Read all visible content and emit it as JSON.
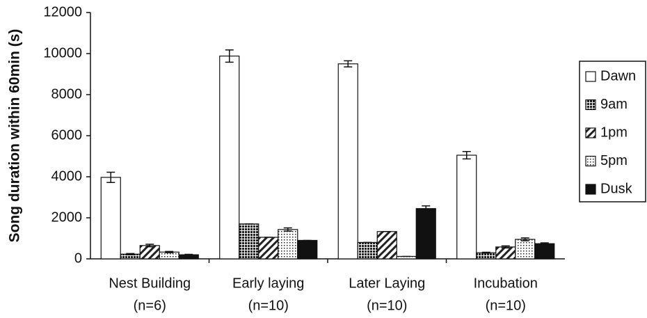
{
  "chart_data": {
    "type": "bar",
    "y_label": "Song duration within 60min (s)",
    "categories": [
      "Nest Building",
      "Early laying",
      "Later Laying",
      "Incubation"
    ],
    "category_sublabels": [
      "(n=6)",
      "(n=10)",
      "(n=10)",
      "(n=10)"
    ],
    "series": [
      {
        "name": "Dawn",
        "color": "#ffffff",
        "pattern": "none",
        "values": [
          3970,
          9880,
          9500,
          5050
        ],
        "errors": [
          250,
          300,
          150,
          180
        ]
      },
      {
        "name": "9am",
        "color": "#222222",
        "pattern": "crosshatch",
        "values": [
          230,
          1700,
          800,
          300
        ],
        "errors": [
          30,
          0,
          0,
          20
        ]
      },
      {
        "name": "1pm",
        "color": "#222222",
        "pattern": "diagonal",
        "values": [
          650,
          1050,
          1330,
          580
        ],
        "errors": [
          60,
          0,
          0,
          50
        ]
      },
      {
        "name": "5pm",
        "color": "#222222",
        "pattern": "dots",
        "values": [
          330,
          1430,
          120,
          950
        ],
        "errors": [
          30,
          80,
          0,
          70
        ]
      },
      {
        "name": "Dusk",
        "color": "#111111",
        "pattern": "solid",
        "values": [
          200,
          900,
          2450,
          740
        ],
        "errors": [
          20,
          0,
          130,
          40
        ]
      }
    ],
    "ylim": [
      0,
      12000
    ],
    "yticks": [
      0,
      2000,
      4000,
      6000,
      8000,
      10000,
      12000
    ],
    "legend": "right"
  }
}
